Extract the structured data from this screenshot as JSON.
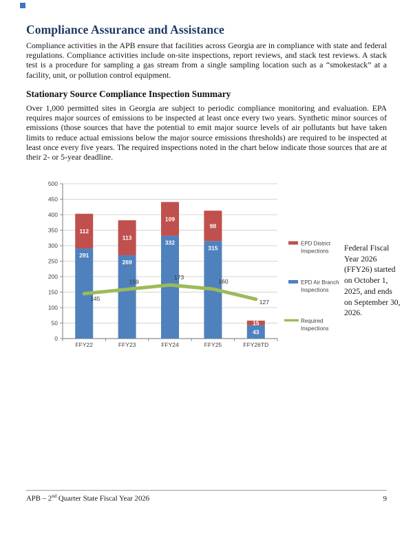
{
  "title": "Compliance Assurance and Assistance",
  "paragraph1": "Compliance activities in the APB ensure that facilities across Georgia are in compliance with state and federal regulations.  Compliance activities include on-site inspections, report reviews, and stack test reviews. A stack test is a procedure for sampling a gas stream from a single sampling location such as a “smokestack” at a facility, unit, or pollution control equipment.",
  "section_heading": "Stationary Source Compliance Inspection Summary",
  "paragraph2": "Over 1,000 permitted sites in Georgia are subject to periodic compliance monitoring and evaluation. EPA requires major sources of emissions to be inspected at least once every two years. Synthetic minor sources of emissions (those sources that have the potential to emit major source levels of air pollutants but have taken limits to reduce actual emissions below the major source emissions thresholds) are required to be inspected at least once every five years. The required inspections noted in the chart below indicate those sources that are at their 2- or 5-year deadline.",
  "chart_data": {
    "type": "bar",
    "subtype": "stacked-bar-with-line",
    "categories": [
      "FFY22",
      "FFY23",
      "FFY24",
      "FFY25",
      "FFY26TD"
    ],
    "series": [
      {
        "name": "EPD Air Branch Inspections",
        "type": "bar",
        "color": "#4F81BD",
        "values": [
          291,
          269,
          332,
          315,
          43
        ]
      },
      {
        "name": "EPD District Inspections",
        "type": "bar",
        "color": "#C0504D",
        "values": [
          112,
          113,
          109,
          98,
          15
        ]
      },
      {
        "name": "Required Inspections",
        "type": "line",
        "color": "#9BBB59",
        "values": [
          145,
          159,
          173,
          160,
          127
        ]
      }
    ],
    "stacked_totals": [
      403,
      382,
      441,
      413,
      58
    ],
    "title": "",
    "xlabel": "",
    "ylabel": "",
    "ylim": [
      0,
      500
    ],
    "ytick_step": 50,
    "grid": true,
    "legend_position": "right",
    "legend": [
      {
        "label_lines": [
          "EPD District",
          "Inspections"
        ],
        "color": "#C0504D",
        "marker": "rect"
      },
      {
        "label_lines": [
          "EPD Air Branch",
          "Inspections"
        ],
        "color": "#4F81BD",
        "marker": "rect"
      },
      {
        "label_lines": [
          "Required",
          "Inspections"
        ],
        "color": "#9BBB59",
        "marker": "line"
      }
    ]
  },
  "side_note": {
    "lines": [
      "Federal Fiscal",
      "Year 2026",
      "(FFY26) started",
      "on October 1,",
      "2025, and ends",
      "on September 30,",
      "2026."
    ]
  },
  "footer": {
    "left_prefix": "APB – 2",
    "left_sup": "nd",
    "left_rest": " Quarter State Fiscal Year 2026",
    "page_number": "9"
  }
}
